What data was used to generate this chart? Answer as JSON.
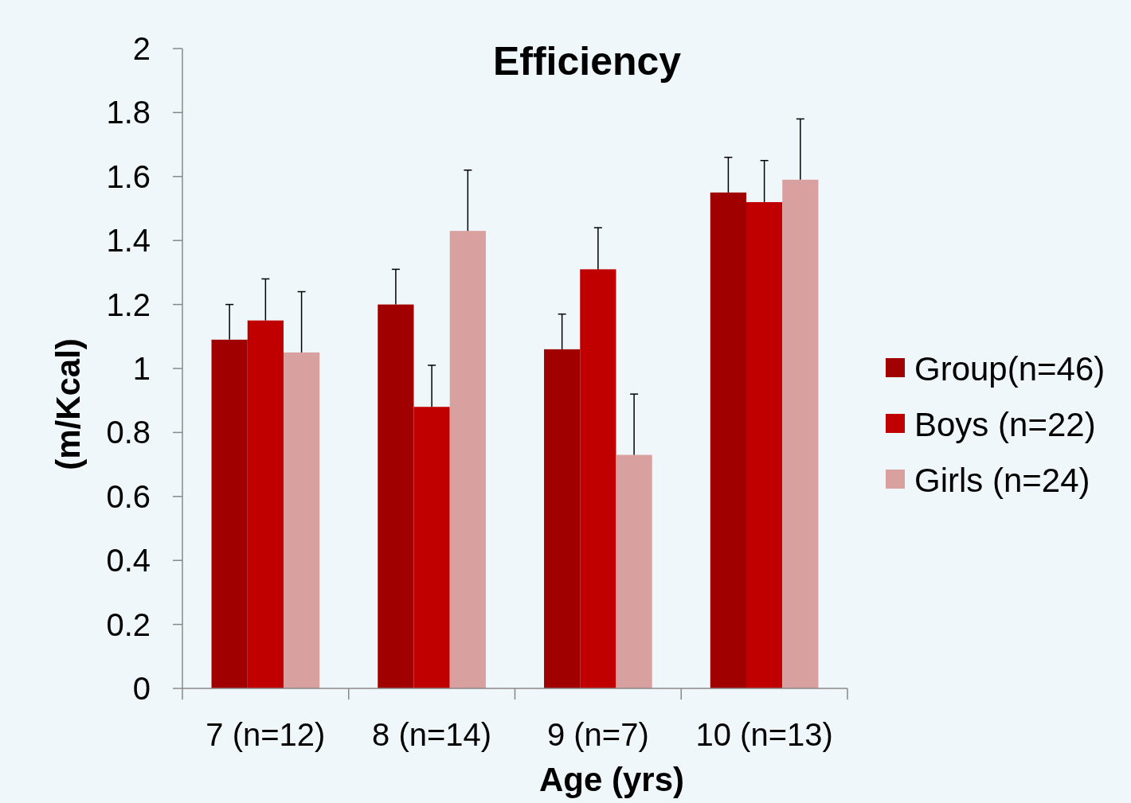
{
  "chart_data": {
    "type": "bar",
    "title": "Efficiency",
    "xlabel": "Age (yrs)",
    "ylabel": "(m/Kcal)",
    "categories": [
      "7 (n=12)",
      "8 (n=14)",
      "9 (n=7)",
      "10 (n=13)"
    ],
    "series": [
      {
        "name": "Group(n=46)",
        "color": "#a00000",
        "values": [
          1.09,
          1.2,
          1.06,
          1.55
        ],
        "errors": [
          [
            1.09,
            1.2
          ],
          [
            1.2,
            1.31
          ],
          [
            1.06,
            1.17
          ],
          [
            1.55,
            1.66
          ]
        ]
      },
      {
        "name": "Boys (n=22)",
        "color": "#c00000",
        "values": [
          1.15,
          0.88,
          1.31,
          1.52
        ],
        "errors": [
          [
            1.15,
            1.28
          ],
          [
            0.88,
            1.01
          ],
          [
            1.31,
            1.44
          ],
          [
            1.52,
            1.65
          ]
        ]
      },
      {
        "name": "Girls (n=24)",
        "color": "#d9a0a0",
        "values": [
          1.05,
          1.43,
          0.73,
          1.59
        ],
        "errors": [
          [
            1.05,
            1.24
          ],
          [
            1.43,
            1.62
          ],
          [
            0.73,
            0.92
          ],
          [
            1.59,
            1.78
          ]
        ]
      }
    ],
    "ylim": [
      0,
      2
    ],
    "yticks": [
      0,
      0.2,
      0.4,
      0.6,
      0.8,
      1,
      1.2,
      1.4,
      1.6,
      1.8,
      2
    ],
    "legend": "right",
    "grid": false
  }
}
